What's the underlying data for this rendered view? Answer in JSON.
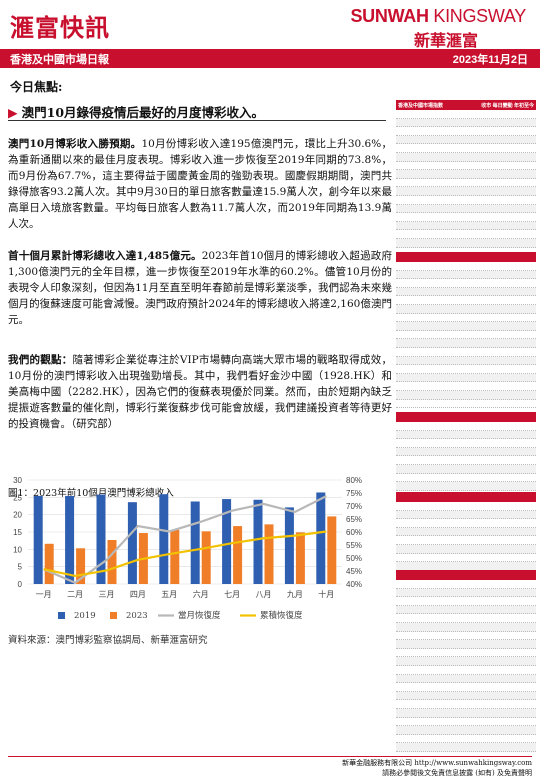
{
  "header": {
    "brand_cn": "滙富快訊",
    "brand_en_1": "SUNWAH",
    "brand_en_2": "KINGSWAY",
    "brand_cn_right": "新華滙富",
    "subtitle": "香港及中國市場日報",
    "date": "2023年11月2日"
  },
  "main": {
    "focus_label": "今日焦點:",
    "headline": "澳門10月錄得疫情后最好的月度博彩收入。",
    "para1_lead": "澳門10月博彩收入勝預期。",
    "para1_body": "10月份博彩收入達195億澳門元，環比上升30.6%，為重新通關以來的最佳月度表現。博彩收入進一步恢復至2019年同期的73.8%，而9月份為67.7%，這主要得益于國慶黃金周的強勁表現。國慶假期期間，澳門共錄得旅客93.2萬人次。其中9月30日的單日旅客數量達15.9萬人次，創今年以來最高單日入境旅客數量。平均每日旅客人數為11.7萬人次，而2019年同期為13.9萬人次。",
    "para2_lead": "首十個月累計博彩總收入達1,485億元。",
    "para2_body": "2023年首10個月的博彩總收入超過政府1,300億澳門元的全年目標，進一步恢復至2019年水準的60.2%。儘管10月份的表現令人印象深刻，但因為11月至直至明年春節前是博彩業淡季，我們認為未來幾個月的復蘇速度可能會減慢。澳門政府預計2024年的博彩總收入將達2,160億澳門元。",
    "para3_lead": "我們的觀點：",
    "para3_body": "隨著博彩企業從專注於VIP市場轉向高端大眾市場的戰略取得成效，10月份的澳門博彩收入出現強勁增長。其中，我們看好金沙中國（1928.HK）和美高梅中國（2282.HK），因為它們的復蘇表現優於同業。然而，由於短期內缺乏提振遊客數量的催化劑，博彩行業復蘇步伐可能會放緩，我們建議投資者等待更好的投資機會。（研究部）",
    "figure_title": "圖1：2023年前10個月澳門博彩總收入",
    "source": "資料來源：澳門博彩監察協調局、新華滙富研究"
  },
  "chart_data": {
    "type": "bar",
    "categories": [
      "一月",
      "二月",
      "三月",
      "四月",
      "五月",
      "六月",
      "七月",
      "八月",
      "九月",
      "十月"
    ],
    "ylim": [
      0,
      30
    ],
    "yticks": [
      "0",
      "5",
      "10",
      "15",
      "20",
      "25",
      "30"
    ],
    "y2lim": [
      40,
      80
    ],
    "y2ticks": [
      "40%",
      "45%",
      "50%",
      "55%",
      "60%",
      "65%",
      "70%",
      "75%",
      "80%"
    ],
    "series": [
      {
        "name": "2019",
        "kind": "bar",
        "color": "#2e5fb0",
        "values": [
          25.4,
          25.4,
          25.8,
          23.6,
          25.9,
          23.8,
          24.5,
          24.3,
          22.1,
          26.4
        ]
      },
      {
        "name": "2023",
        "kind": "bar",
        "color": "#f07d28",
        "values": [
          11.6,
          10.3,
          12.7,
          14.7,
          15.6,
          15.2,
          16.7,
          17.2,
          14.9,
          19.5
        ]
      },
      {
        "name": "當月恢復度",
        "kind": "line",
        "axis": "right",
        "color": "#b8b8b8",
        "values": [
          45.7,
          40.5,
          49.2,
          62.3,
          60.2,
          63.9,
          68.2,
          70.8,
          67.7,
          73.8
        ]
      },
      {
        "name": "累積恢復度",
        "kind": "line",
        "axis": "right",
        "color": "#f2c200",
        "values": [
          45.7,
          43.1,
          45.2,
          49.3,
          51.5,
          53.5,
          55.7,
          57.6,
          58.6,
          60.2
        ]
      }
    ]
  },
  "sidebar": {
    "block1_head_left": "香港及中國市場指數",
    "block1_head_right": "收市 每日變動 年初至今"
  },
  "footer": {
    "line1": "新華金融服務有限公司 http://www.sunwahkingsway.com",
    "line2": "請務必參閱後文免責信息披露 (如有) 及免責聲明"
  }
}
